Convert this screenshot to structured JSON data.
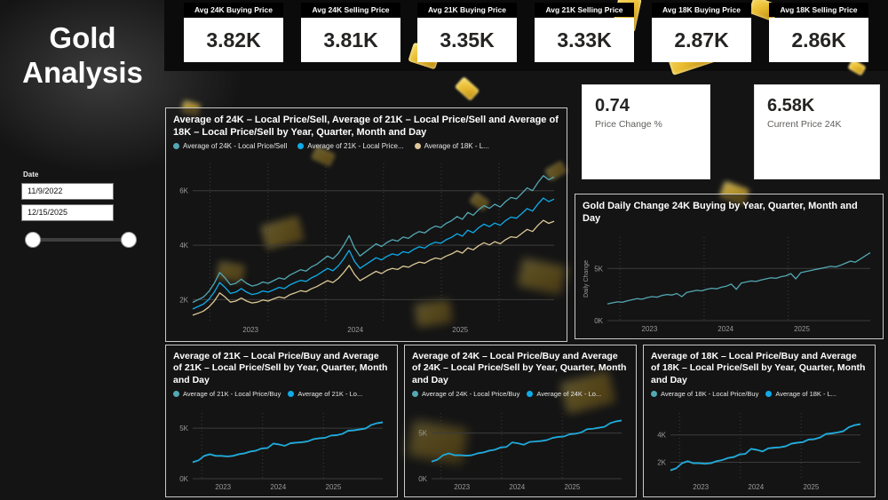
{
  "page": {
    "title_line1": "Gold",
    "title_line2": "Analysis"
  },
  "date_slicer": {
    "label": "Date",
    "start": "11/9/2022",
    "end": "12/15/2025"
  },
  "kpi_cards": [
    {
      "label": "Avg 24K Buying Price",
      "value": "3.82K"
    },
    {
      "label": "Avg 24K Selling Price",
      "value": "3.81K"
    },
    {
      "label": "Avg 21K Buying Price",
      "value": "3.35K"
    },
    {
      "label": "Avg 21K Selling Price",
      "value": "3.33K"
    },
    {
      "label": "Avg 18K Buying Price",
      "value": "2.87K"
    },
    {
      "label": "Avg 18K Selling Price",
      "value": "2.86K"
    }
  ],
  "stat_cards": [
    {
      "value": "0.74",
      "label": "Price Change %"
    },
    {
      "value": "6.58K",
      "label": "Current Price 24K"
    }
  ],
  "colors": {
    "teal": "#53a8b4",
    "blue": "#0fabe8",
    "tan": "#dcc795"
  },
  "chart_data": [
    {
      "type": "line",
      "title": "Average of 24K – Local Price/Sell, Average of 21K – Local Price/Sell and Average of 18K – Local Price/Sell by Year, Quarter, Month and Day",
      "xlabel": "",
      "ylabel": "",
      "ylim": [
        1.2,
        7.0
      ],
      "yticks": [
        {
          "v": 2,
          "label": "2K"
        },
        {
          "v": 4,
          "label": "4K"
        },
        {
          "v": 6,
          "label": "6K"
        }
      ],
      "xticks": [
        {
          "f": 0.16,
          "label": "2023"
        },
        {
          "f": 0.45,
          "label": "2024"
        },
        {
          "f": 0.74,
          "label": "2025"
        }
      ],
      "xgrid": [
        0.048,
        0.208,
        0.368,
        0.528,
        0.688,
        0.848
      ],
      "legend": [
        {
          "label": "Average of 24K - Local Price/Sell",
          "color": "#53a8b4"
        },
        {
          "label": "Average of 21K - Local Price...",
          "color": "#0fabe8"
        },
        {
          "label": "Average of 18K - L...",
          "color": "#dcc795"
        }
      ],
      "series": [
        {
          "name": "Average of 24K - Local Price/Sell",
          "color": "#53a8b4",
          "values": [
            1.9,
            2.0,
            2.1,
            2.3,
            2.6,
            3.0,
            2.8,
            2.55,
            2.6,
            2.75,
            2.6,
            2.5,
            2.55,
            2.65,
            2.6,
            2.7,
            2.8,
            2.75,
            2.9,
            3.0,
            3.1,
            3.05,
            3.2,
            3.3,
            3.45,
            3.6,
            3.5,
            3.7,
            4.0,
            4.35,
            3.9,
            3.6,
            3.75,
            3.9,
            4.05,
            3.95,
            4.1,
            4.2,
            4.15,
            4.3,
            4.25,
            4.4,
            4.5,
            4.45,
            4.6,
            4.7,
            4.65,
            4.8,
            4.9,
            5.05,
            4.95,
            5.2,
            5.1,
            5.3,
            5.45,
            5.35,
            5.5,
            5.4,
            5.6,
            5.75,
            5.7,
            5.9,
            6.1,
            6.0,
            6.3,
            6.55,
            6.4,
            6.5
          ]
        },
        {
          "name": "Average of 21K - Local Price/Sell",
          "color": "#0fabe8",
          "values": [
            1.66,
            1.75,
            1.84,
            2.01,
            2.28,
            2.63,
            2.45,
            2.23,
            2.28,
            2.41,
            2.28,
            2.19,
            2.23,
            2.32,
            2.28,
            2.36,
            2.45,
            2.41,
            2.54,
            2.63,
            2.71,
            2.67,
            2.8,
            2.89,
            3.02,
            3.15,
            3.06,
            3.24,
            3.5,
            3.81,
            3.41,
            3.15,
            3.28,
            3.41,
            3.54,
            3.46,
            3.59,
            3.68,
            3.63,
            3.76,
            3.72,
            3.85,
            3.94,
            3.89,
            4.03,
            4.11,
            4.07,
            4.2,
            4.29,
            4.42,
            4.33,
            4.55,
            4.46,
            4.64,
            4.77,
            4.68,
            4.81,
            4.73,
            4.9,
            5.03,
            4.99,
            5.16,
            5.34,
            5.25,
            5.51,
            5.73,
            5.6,
            5.69
          ]
        },
        {
          "name": "Average of 18K - Local Price/Sell",
          "color": "#dcc795",
          "values": [
            1.43,
            1.5,
            1.58,
            1.73,
            1.95,
            2.25,
            2.1,
            1.91,
            1.95,
            2.06,
            1.95,
            1.88,
            1.91,
            1.99,
            1.95,
            2.03,
            2.1,
            2.06,
            2.18,
            2.25,
            2.33,
            2.29,
            2.4,
            2.48,
            2.59,
            2.7,
            2.63,
            2.78,
            3.0,
            3.26,
            2.93,
            2.7,
            2.81,
            2.93,
            3.04,
            2.96,
            3.08,
            3.15,
            3.11,
            3.23,
            3.19,
            3.3,
            3.38,
            3.34,
            3.45,
            3.53,
            3.49,
            3.6,
            3.68,
            3.79,
            3.71,
            3.9,
            3.83,
            3.98,
            4.09,
            4.01,
            4.13,
            4.05,
            4.2,
            4.31,
            4.28,
            4.43,
            4.58,
            4.5,
            4.73,
            4.91,
            4.8,
            4.88
          ]
        }
      ]
    },
    {
      "type": "line",
      "title": "Gold Daily Change 24K Buying by Year, Quarter, Month and Day",
      "xlabel": "",
      "ylabel": "Daily Change",
      "ylim": [
        0,
        8
      ],
      "yticks": [
        {
          "v": 0,
          "label": "0K"
        },
        {
          "v": 5,
          "label": "5K"
        }
      ],
      "xticks": [
        {
          "f": 0.16,
          "label": "2023"
        },
        {
          "f": 0.45,
          "label": "2024"
        },
        {
          "f": 0.74,
          "label": "2025"
        }
      ],
      "xgrid": [
        0.048,
        0.368,
        0.688
      ],
      "legend": [],
      "series": [
        {
          "name": "Gold Daily Change 24K Buying",
          "color": "#53a8b4",
          "values": [
            1.6,
            1.7,
            1.8,
            1.75,
            1.9,
            2.0,
            2.1,
            2.05,
            2.2,
            2.3,
            2.25,
            2.4,
            2.5,
            2.45,
            2.6,
            2.3,
            2.7,
            2.8,
            2.9,
            2.85,
            3.0,
            3.1,
            3.05,
            3.2,
            3.3,
            3.5,
            3.0,
            3.6,
            3.7,
            3.8,
            3.75,
            3.9,
            4.0,
            4.1,
            4.05,
            4.2,
            4.3,
            4.5,
            4.0,
            4.6,
            4.7,
            4.8,
            4.9,
            5.0,
            5.1,
            5.2,
            5.15,
            5.3,
            5.5,
            5.7,
            5.6,
            5.9,
            6.2,
            6.5
          ]
        }
      ]
    },
    {
      "type": "line",
      "title": "Average of 21K – Local Price/Buy and Average of 21K – Local Price/Sell by Year, Quarter, Month and Day",
      "xlabel": "",
      "ylabel": "",
      "ylim": [
        0,
        6.5
      ],
      "yticks": [
        {
          "v": 0,
          "label": "0K"
        },
        {
          "v": 5,
          "label": "5K"
        }
      ],
      "xticks": [
        {
          "f": 0.16,
          "label": "2023"
        },
        {
          "f": 0.45,
          "label": "2024"
        },
        {
          "f": 0.74,
          "label": "2025"
        }
      ],
      "xgrid": [
        0.048,
        0.368,
        0.688
      ],
      "legend": [
        {
          "label": "Average of 21K - Local Price/Buy",
          "color": "#53a8b4"
        },
        {
          "label": "Average of 21K - Lo...",
          "color": "#0fabe8"
        }
      ],
      "series": [
        {
          "name": "Average of 21K - Local Price/Buy",
          "color": "#53a8b4",
          "values": [
            1.61,
            1.79,
            2.23,
            2.4,
            2.23,
            2.23,
            2.18,
            2.23,
            2.4,
            2.49,
            2.66,
            2.75,
            2.97,
            3.01,
            3.45,
            3.36,
            3.23,
            3.49,
            3.54,
            3.58,
            3.67,
            3.89,
            3.98,
            4.02,
            4.24,
            4.28,
            4.41,
            4.72,
            4.76,
            4.85,
            4.94,
            5.29,
            5.46,
            5.55
          ]
        },
        {
          "name": "Average of 21K - Local Price/Sell",
          "color": "#0fabe8",
          "values": [
            1.66,
            1.84,
            2.28,
            2.45,
            2.28,
            2.28,
            2.23,
            2.28,
            2.45,
            2.54,
            2.71,
            2.8,
            3.02,
            3.06,
            3.5,
            3.41,
            3.28,
            3.54,
            3.59,
            3.63,
            3.72,
            3.94,
            4.03,
            4.07,
            4.29,
            4.33,
            4.46,
            4.77,
            4.81,
            4.9,
            4.99,
            5.34,
            5.51,
            5.6
          ]
        }
      ]
    },
    {
      "type": "line",
      "title": "Average of 24K – Local Price/Buy and Average of 24K – Local Price/Sell by Year, Quarter, Month and Day",
      "xlabel": "",
      "ylabel": "",
      "ylim": [
        0,
        7.2
      ],
      "yticks": [
        {
          "v": 0,
          "label": "0K"
        },
        {
          "v": 5,
          "label": "5K"
        }
      ],
      "xticks": [
        {
          "f": 0.16,
          "label": "2023"
        },
        {
          "f": 0.45,
          "label": "2024"
        },
        {
          "f": 0.74,
          "label": "2025"
        }
      ],
      "xgrid": [
        0.048,
        0.368,
        0.688
      ],
      "legend": [
        {
          "label": "Average of 24K - Local Price/Buy",
          "color": "#53a8b4"
        },
        {
          "label": "Average of 24K - Lo...",
          "color": "#0fabe8"
        }
      ],
      "series": [
        {
          "name": "Average of 24K - Local Price/Buy",
          "color": "#53a8b4",
          "values": [
            1.85,
            2.05,
            2.55,
            2.75,
            2.55,
            2.55,
            2.5,
            2.55,
            2.75,
            2.85,
            3.05,
            3.15,
            3.4,
            3.45,
            3.95,
            3.85,
            3.7,
            4.0,
            4.05,
            4.1,
            4.2,
            4.45,
            4.55,
            4.6,
            4.85,
            4.9,
            5.05,
            5.4,
            5.45,
            5.55,
            5.65,
            6.05,
            6.25,
            6.35
          ]
        },
        {
          "name": "Average of 24K - Local Price/Sell",
          "color": "#0fabe8",
          "values": [
            1.9,
            2.1,
            2.6,
            2.8,
            2.6,
            2.6,
            2.55,
            2.6,
            2.8,
            2.9,
            3.1,
            3.2,
            3.45,
            3.5,
            4.0,
            3.9,
            3.75,
            4.05,
            4.1,
            4.15,
            4.25,
            4.5,
            4.6,
            4.65,
            4.9,
            4.95,
            5.1,
            5.45,
            5.5,
            5.6,
            5.7,
            6.1,
            6.3,
            6.4
          ]
        }
      ]
    },
    {
      "type": "line",
      "title": "Average of 18K – Local Price/Buy and Average of 18K – Local Price/Sell by Year, Quarter, Month and Day",
      "xlabel": "",
      "ylabel": "",
      "ylim": [
        0.8,
        5.6
      ],
      "yticks": [
        {
          "v": 2,
          "label": "2K"
        },
        {
          "v": 4,
          "label": "4K"
        }
      ],
      "xticks": [
        {
          "f": 0.16,
          "label": "2023"
        },
        {
          "f": 0.45,
          "label": "2024"
        },
        {
          "f": 0.74,
          "label": "2025"
        }
      ],
      "xgrid": [
        0.048,
        0.368,
        0.688
      ],
      "legend": [
        {
          "label": "Average of 18K - Local Price/Buy",
          "color": "#53a8b4"
        },
        {
          "label": "Average of 18K - L...",
          "color": "#0fabe8"
        }
      ],
      "series": [
        {
          "name": "Average of 18K - Local Price/Buy",
          "color": "#53a8b4",
          "values": [
            1.39,
            1.54,
            1.91,
            2.06,
            1.91,
            1.91,
            1.87,
            1.91,
            2.06,
            2.14,
            2.29,
            2.36,
            2.55,
            2.59,
            2.96,
            2.89,
            2.77,
            3.0,
            3.04,
            3.07,
            3.15,
            3.34,
            3.41,
            3.45,
            3.64,
            3.67,
            3.79,
            4.05,
            4.09,
            4.16,
            4.24,
            4.54,
            4.69,
            4.76
          ]
        },
        {
          "name": "Average of 18K - Local Price/Sell",
          "color": "#0fabe8",
          "values": [
            1.43,
            1.58,
            1.95,
            2.1,
            1.95,
            1.95,
            1.91,
            1.95,
            2.1,
            2.18,
            2.33,
            2.4,
            2.59,
            2.63,
            3.0,
            2.93,
            2.81,
            3.04,
            3.08,
            3.11,
            3.19,
            3.38,
            3.45,
            3.49,
            3.68,
            3.71,
            3.83,
            4.09,
            4.13,
            4.2,
            4.28,
            4.58,
            4.73,
            4.8
          ]
        }
      ]
    }
  ]
}
